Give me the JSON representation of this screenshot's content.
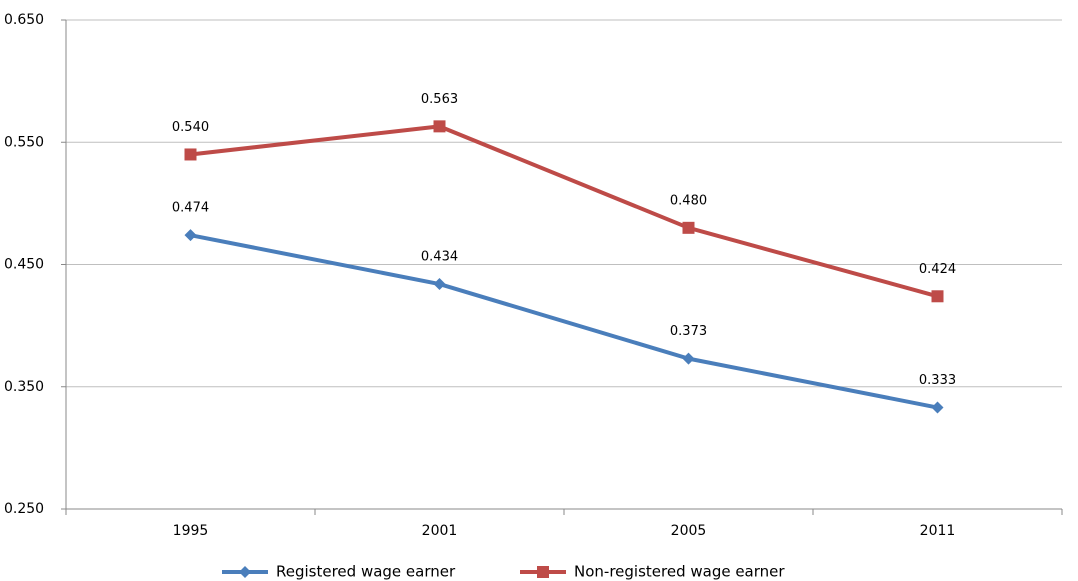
{
  "chart_data": {
    "type": "line",
    "categories": [
      "1995",
      "2001",
      "2005",
      "2011"
    ],
    "series": [
      {
        "name": "Registered wage earner",
        "color": "#4a7ebb",
        "marker": "diamond",
        "values": [
          0.474,
          0.434,
          0.373,
          0.333
        ],
        "value_labels": [
          "0.474",
          "0.434",
          "0.373",
          "0.333"
        ]
      },
      {
        "name": "Non-registered wage earner",
        "color": "#be4b48",
        "marker": "square",
        "values": [
          0.54,
          0.563,
          0.48,
          0.424
        ],
        "value_labels": [
          "0.540",
          "0.563",
          "0.480",
          "0.424"
        ]
      }
    ],
    "ylim": [
      0.25,
      0.65
    ],
    "yticks": [
      {
        "value": 0.25,
        "label": "0.250"
      },
      {
        "value": 0.35,
        "label": "0.350"
      },
      {
        "value": 0.45,
        "label": "0.450"
      },
      {
        "value": 0.55,
        "label": "0.550"
      },
      {
        "value": 0.65,
        "label": "0.650"
      }
    ],
    "grid": true,
    "legend": "bottom"
  }
}
